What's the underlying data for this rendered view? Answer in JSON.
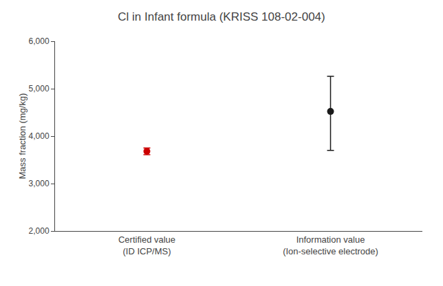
{
  "chart_data": {
    "type": "errorbar",
    "title": "Cl in Infant formula (KRISS 108-02-004)",
    "ylabel": "Mass fraction (mg/kg)",
    "categories": [
      "Certified value\n(ID ICP/MS)",
      "Information value\n(Ion-selective electrode)"
    ],
    "values": [
      3680,
      4520
    ],
    "errors_upper": [
      70,
      740
    ],
    "errors_lower": [
      70,
      820
    ],
    "colors": [
      "#cc0000",
      "#1a1a1a"
    ],
    "marker": "circle",
    "ylim": [
      2000,
      6000
    ],
    "yticks": [
      {
        "value": 2000,
        "label": "2,000"
      },
      {
        "value": 3000,
        "label": "3,000"
      },
      {
        "value": 4000,
        "label": "4,000"
      },
      {
        "value": 5000,
        "label": "5,000"
      },
      {
        "value": 6000,
        "label": "6,000"
      }
    ],
    "grid": false
  }
}
